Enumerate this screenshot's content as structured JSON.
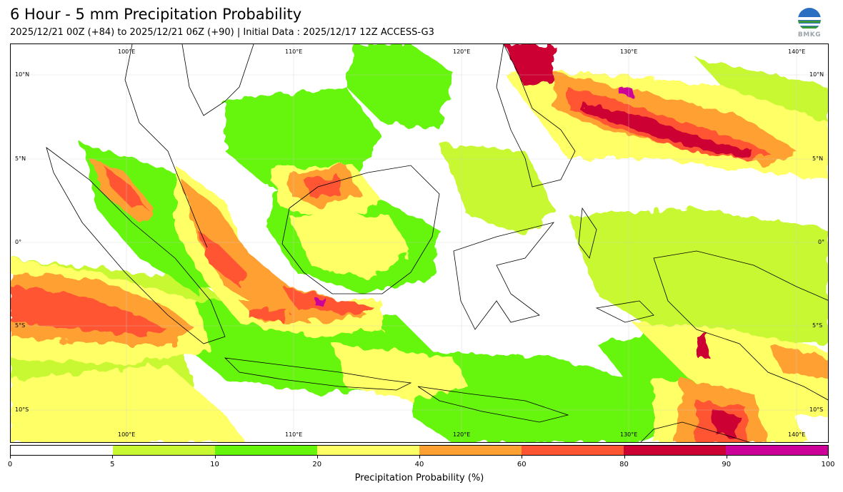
{
  "header": {
    "title": "6 Hour - 5 mm Precipitation Probability",
    "subtitle": "2025/12/21 00Z (+84) to 2025/12/21 06Z (+90) | Initial Data : 2025/12/17 12Z ACCESS-G3"
  },
  "logo": {
    "text": "BMKG",
    "icon": "bmkg-globe-icon"
  },
  "map": {
    "lon_range": [
      91,
      141
    ],
    "lat_range": [
      -12,
      12
    ],
    "lon_ticks_top": [
      "100°E",
      "110°E",
      "120°E",
      "130°E",
      "140°E"
    ],
    "lon_ticks_bottom": [
      "100°E",
      "110°E",
      "120°E",
      "130°E",
      "140°E"
    ],
    "lat_ticks_left": [
      "10°N",
      "5°N",
      "0°",
      "5°S",
      "10°S"
    ],
    "lat_ticks_right": [
      "10°N",
      "5°N",
      "0°",
      "5°S",
      "10°S"
    ],
    "gridlines": true
  },
  "colorbar": {
    "title": "Precipitation Probability (%)",
    "bounds": [
      "0",
      "5",
      "10",
      "20",
      "40",
      "60",
      "80",
      "90",
      "100"
    ],
    "colors": [
      "#ffffff",
      "#c7f832",
      "#66f50a",
      "#ffff66",
      "#ffa033",
      "#ff5533",
      "#cc0033",
      "#cc0099"
    ]
  }
}
